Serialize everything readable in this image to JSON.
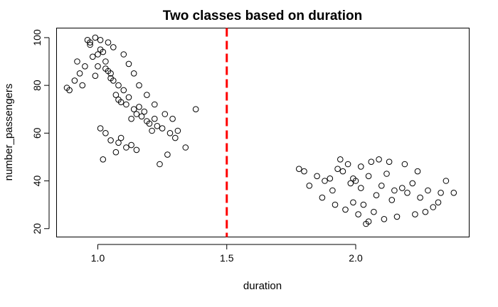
{
  "chart_data": {
    "type": "scatter",
    "title": "Two classes based on duration",
    "xlabel": "duration",
    "ylabel": "number_passengers",
    "xlim": [
      0.84,
      2.44
    ],
    "ylim": [
      16.5,
      104
    ],
    "x_ticks": [
      1.0,
      1.5,
      2.0
    ],
    "x_tick_labels": [
      "1.0",
      "1.5",
      "2.0"
    ],
    "y_ticks": [
      20,
      40,
      60,
      80,
      100
    ],
    "y_tick_labels": [
      "20",
      "40",
      "60",
      "80",
      "100"
    ],
    "grid": false,
    "marker": "open-circle",
    "point_color": "#000000",
    "threshold": {
      "x": 1.5,
      "color": "#ff0000",
      "style": "dashed"
    },
    "series": [
      {
        "x": [
          1.03,
          1.05,
          1.08,
          1.01,
          1.1,
          0.98,
          1.06,
          1.12,
          1.0,
          1.04,
          0.97,
          1.09,
          1.14,
          1.02,
          1.07,
          0.99,
          1.11,
          1.15,
          0.96,
          1.13,
          1.05,
          1.03,
          1.08,
          1.0,
          1.18,
          1.2,
          1.22,
          1.16,
          1.25,
          1.28,
          1.19,
          1.23,
          1.3,
          1.17,
          1.21,
          0.95,
          0.93,
          0.94,
          0.92,
          0.97,
          0.99,
          1.01,
          1.04,
          1.06,
          1.1,
          1.12,
          1.14,
          1.16,
          1.19,
          1.22,
          1.26,
          1.29,
          1.31,
          1.34,
          1.38,
          0.88,
          0.89,
          0.91,
          1.03,
          1.05,
          1.08,
          1.11,
          1.07,
          1.02,
          1.13,
          1.24,
          1.27,
          1.15,
          1.09,
          1.01
        ],
        "y": [
          90,
          85,
          80,
          95,
          78,
          92,
          82,
          75,
          88,
          86,
          97,
          73,
          70,
          94,
          76,
          84,
          72,
          68,
          99,
          66,
          83,
          87,
          74,
          93,
          69,
          64,
          66,
          71,
          62,
          60,
          65,
          63,
          58,
          67,
          61,
          88,
          85,
          80,
          90,
          98,
          100,
          99,
          98,
          96,
          93,
          89,
          85,
          80,
          76,
          72,
          68,
          66,
          61,
          54,
          70,
          79,
          78,
          82,
          60,
          57,
          56,
          54,
          52,
          49,
          55,
          47,
          51,
          53,
          58,
          62
        ]
      },
      {
        "x": [
          2.0,
          2.05,
          2.1,
          1.95,
          2.15,
          1.9,
          2.02,
          2.08,
          1.98,
          2.12,
          2.18,
          1.93,
          2.2,
          1.88,
          2.06,
          2.14,
          2.03,
          1.97,
          2.22,
          2.25,
          1.85,
          2.28,
          2.3,
          1.82,
          2.33,
          1.8,
          2.35,
          1.78,
          2.38,
          2.01,
          2.07,
          1.96,
          2.11,
          2.04,
          1.99,
          2.16,
          1.92,
          2.23,
          1.87,
          2.27,
          2.09,
          2.13,
          1.94,
          2.19,
          2.05,
          1.91,
          2.24,
          2.02,
          2.32,
          1.99
        ],
        "y": [
          40,
          42,
          38,
          44,
          36,
          41,
          46,
          34,
          39,
          43,
          37,
          45,
          35,
          40,
          48,
          32,
          30,
          47,
          39,
          33,
          42,
          36,
          29,
          38,
          35,
          44,
          40,
          45,
          35,
          26,
          27,
          28,
          24,
          22,
          31,
          25,
          30,
          26,
          33,
          27,
          49,
          48,
          49,
          47,
          23,
          36,
          44,
          37,
          31,
          41
        ]
      }
    ]
  }
}
